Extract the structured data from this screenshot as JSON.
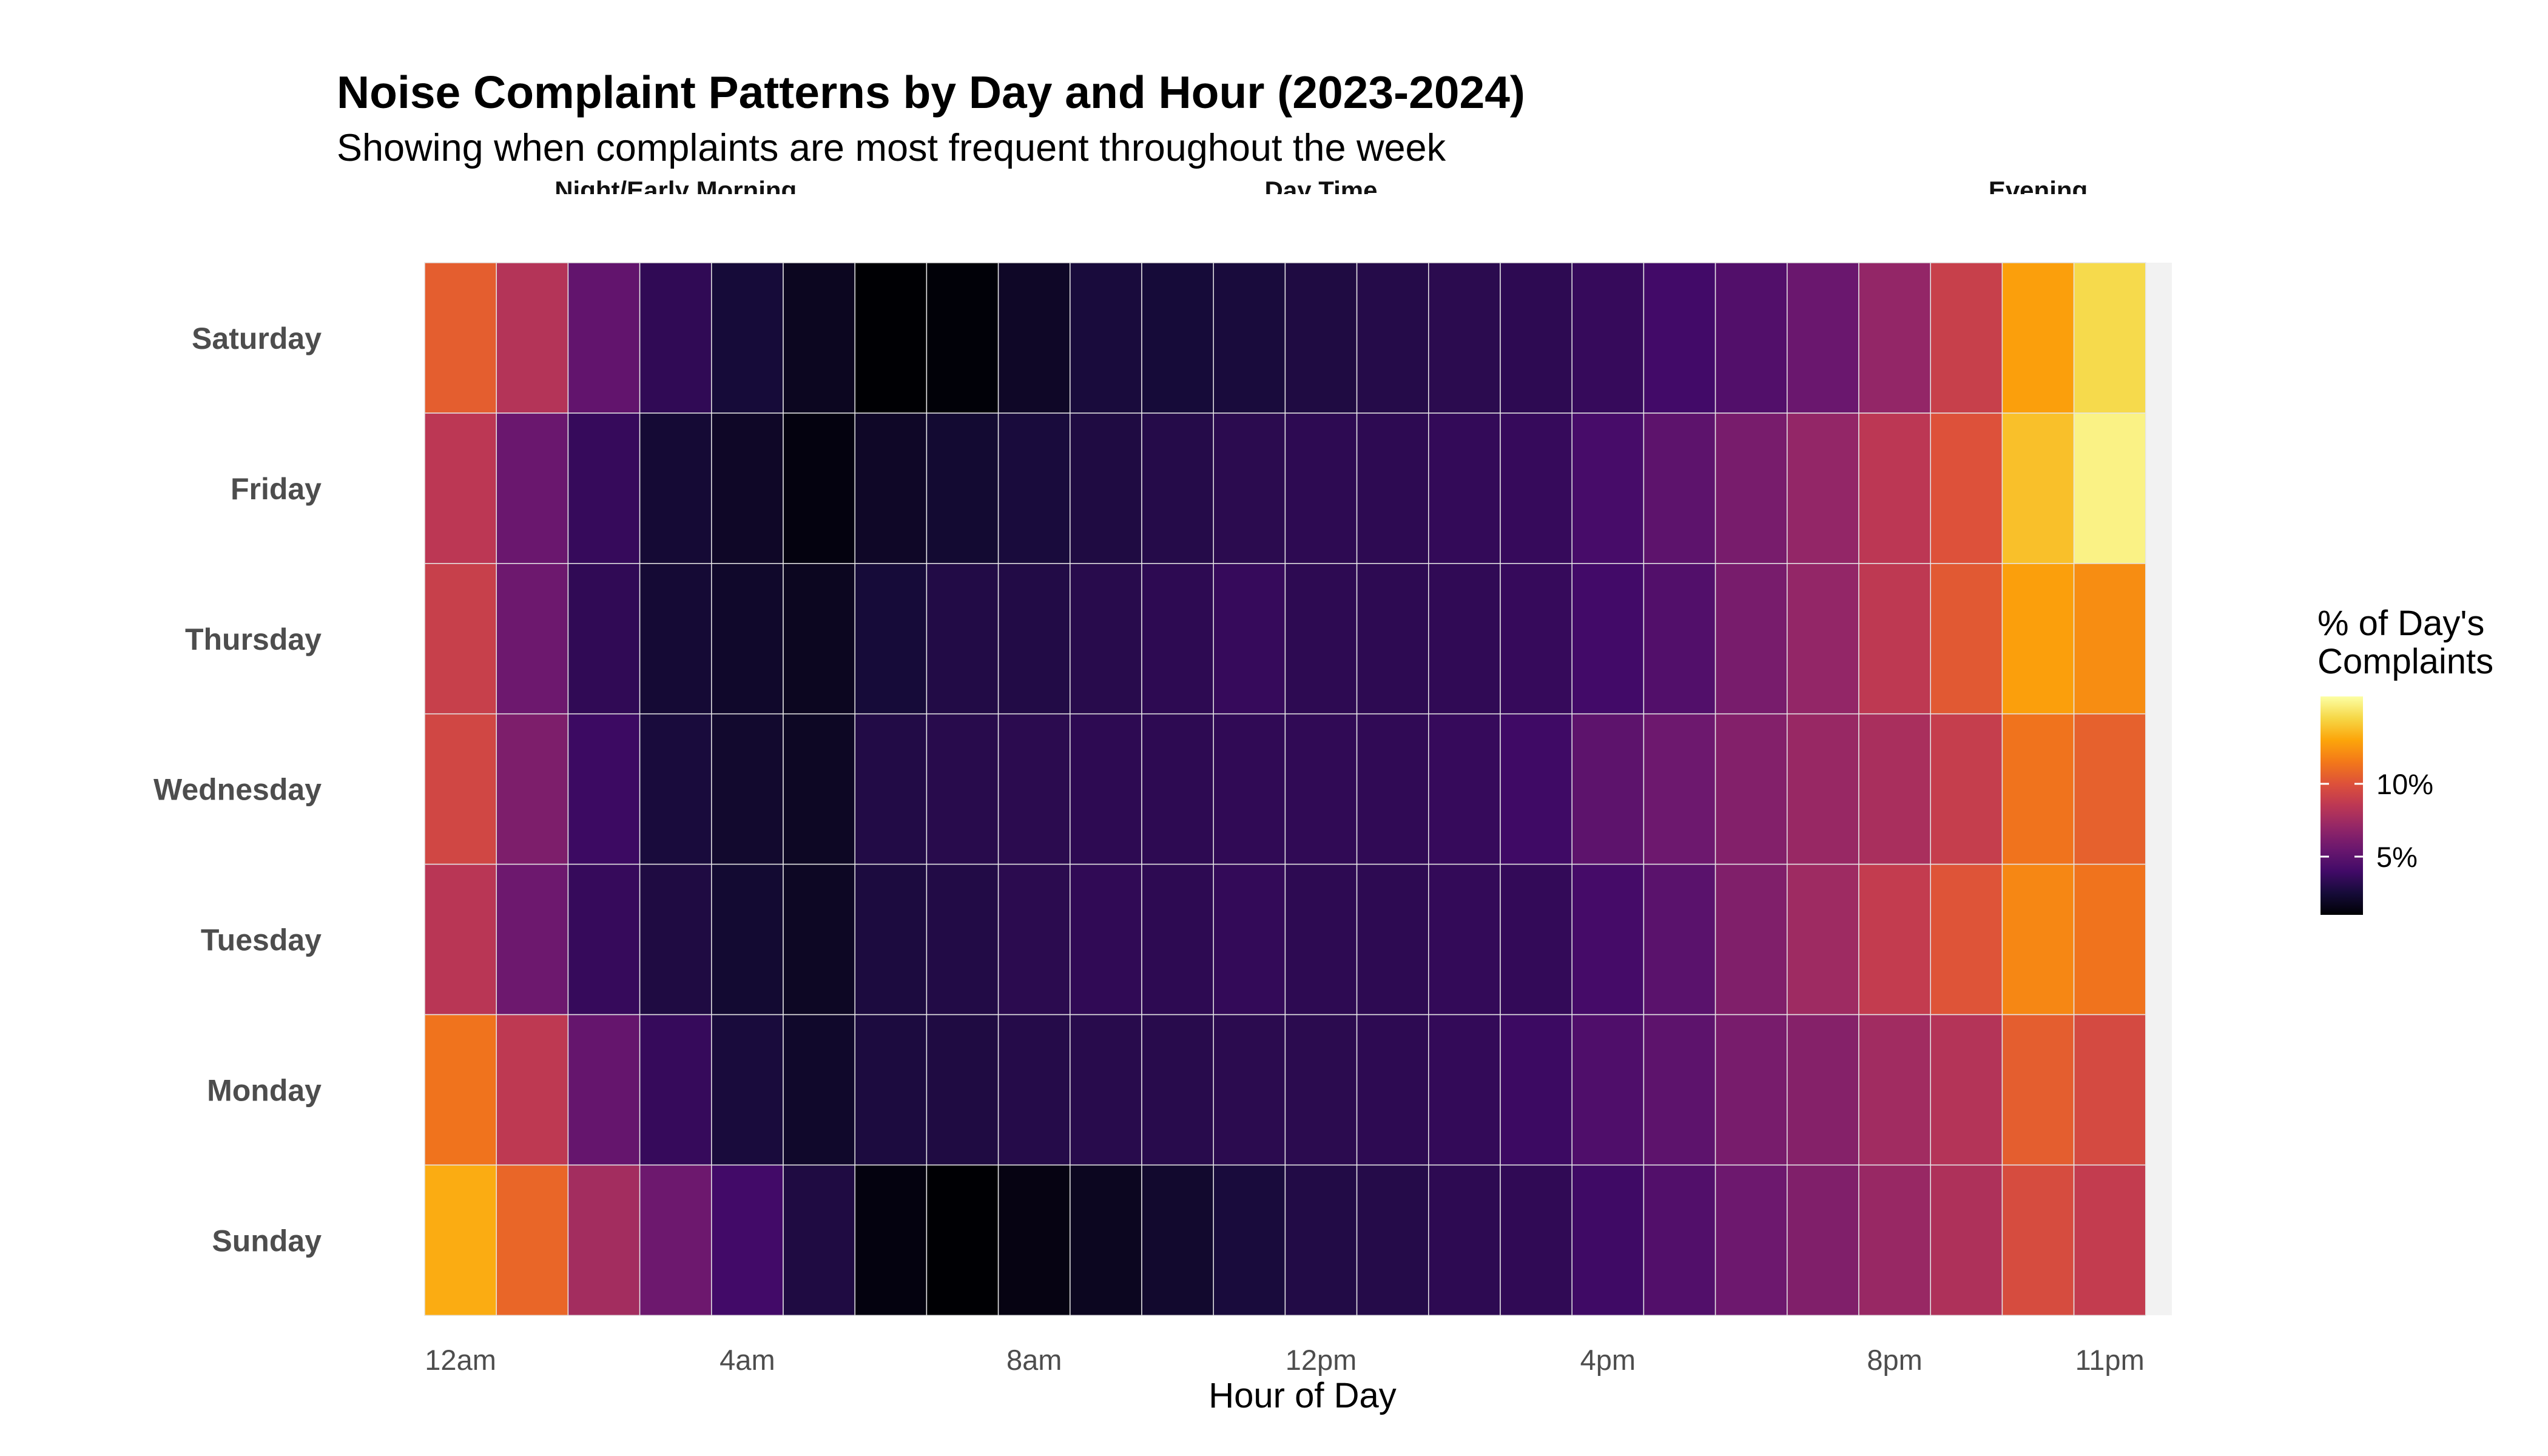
{
  "chart_data": {
    "type": "heatmap",
    "title": "Noise Complaint Patterns by Day and Hour (2023-2024)",
    "subtitle": "Showing when complaints are most frequent throughout the week",
    "xlabel": "Hour of Day",
    "ylabel": "",
    "period_labels": [
      {
        "label": "Night/Early Morning",
        "hour_center": 3
      },
      {
        "label": "Day Time",
        "hour_center": 12
      },
      {
        "label": "Evening",
        "hour_center": 22
      }
    ],
    "x_ticks": [
      {
        "hour": 0,
        "label": "12am"
      },
      {
        "hour": 4,
        "label": "4am"
      },
      {
        "hour": 8,
        "label": "8am"
      },
      {
        "hour": 12,
        "label": "12pm"
      },
      {
        "hour": 16,
        "label": "4pm"
      },
      {
        "hour": 20,
        "label": "8pm"
      },
      {
        "hour": 23,
        "label": "11pm"
      }
    ],
    "days": [
      "Saturday",
      "Friday",
      "Thursday",
      "Wednesday",
      "Tuesday",
      "Monday",
      "Sunday"
    ],
    "hours": [
      0,
      1,
      2,
      3,
      4,
      5,
      6,
      7,
      8,
      9,
      10,
      11,
      12,
      13,
      14,
      15,
      16,
      17,
      18,
      19,
      20,
      21,
      22,
      23
    ],
    "values": [
      [
        10.5,
        8.2,
        5.2,
        3.4,
        2.5,
        1.8,
        1.0,
        1.1,
        2.0,
        2.6,
        2.5,
        2.6,
        2.8,
        3.0,
        3.2,
        3.3,
        3.6,
        4.0,
        4.6,
        5.5,
        7.0,
        9.0,
        12.8,
        14.6
      ],
      [
        8.5,
        5.5,
        3.6,
        2.4,
        2.0,
        1.3,
        2.0,
        2.3,
        2.6,
        2.8,
        3.0,
        3.2,
        3.3,
        3.3,
        3.5,
        3.6,
        4.2,
        5.0,
        6.0,
        7.0,
        8.5,
        10.0,
        13.8,
        15.5
      ],
      [
        9.0,
        5.6,
        3.4,
        2.4,
        2.1,
        1.8,
        2.5,
        2.9,
        2.9,
        3.1,
        3.3,
        3.6,
        3.3,
        3.3,
        3.4,
        3.6,
        4.0,
        4.6,
        6.0,
        7.0,
        8.6,
        10.3,
        12.8,
        12.2
      ],
      [
        9.4,
        6.2,
        3.8,
        2.6,
        2.2,
        1.9,
        2.9,
        3.1,
        3.2,
        3.3,
        3.3,
        3.4,
        3.4,
        3.4,
        3.6,
        3.9,
        5.0,
        5.6,
        6.4,
        7.2,
        7.8,
        8.9,
        11.3,
        10.6
      ],
      [
        8.4,
        5.6,
        3.6,
        2.8,
        2.3,
        1.9,
        2.7,
        2.9,
        3.2,
        3.4,
        3.3,
        3.5,
        3.3,
        3.3,
        3.5,
        3.5,
        4.1,
        4.9,
        6.3,
        7.4,
        8.8,
        10.1,
        12.0,
        11.3
      ],
      [
        11.3,
        8.6,
        5.3,
        3.6,
        2.6,
        2.1,
        2.7,
        2.8,
        3.0,
        3.1,
        3.1,
        3.2,
        3.2,
        3.3,
        3.5,
        3.8,
        4.5,
        5.0,
        6.0,
        6.5,
        7.5,
        8.2,
        10.5,
        9.6
      ],
      [
        13.2,
        10.8,
        7.6,
        5.6,
        4.0,
        2.8,
        1.3,
        1.0,
        1.4,
        1.8,
        2.2,
        2.6,
        2.9,
        3.0,
        3.3,
        3.4,
        3.9,
        4.6,
        5.6,
        6.3,
        7.2,
        8.0,
        9.7,
        8.8
      ]
    ],
    "color_scale": "inferno",
    "color_range": [
      1,
      16
    ],
    "panel_background": "#f2f2f2",
    "legend": {
      "title_line1": "% of Day's",
      "title_line2": "Complaints",
      "ticks": [
        {
          "value": 5,
          "label": "5%"
        },
        {
          "value": 10,
          "label": "10%"
        }
      ],
      "position": "right"
    }
  }
}
